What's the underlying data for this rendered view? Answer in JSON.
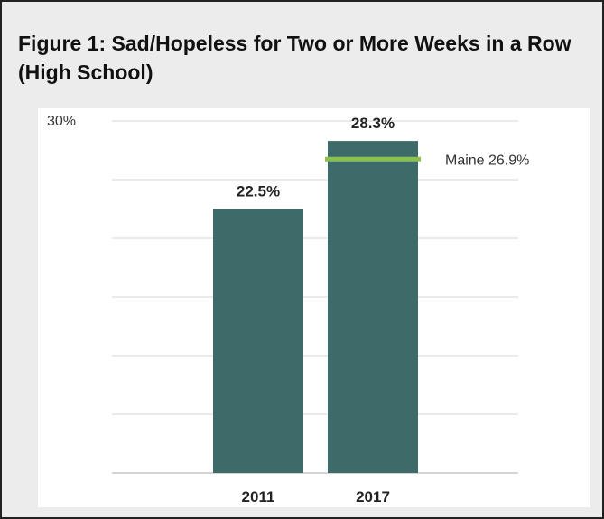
{
  "figure": {
    "title": "Figure 1: Sad/Hopeless for Two or More Weeks in a Row (High School)"
  },
  "chart_data": {
    "type": "bar",
    "title": "Figure 1: Sad/Hopeless for Two or More Weeks in a Row (High School)",
    "categories": [
      "2011",
      "2017"
    ],
    "values": [
      22.5,
      28.3
    ],
    "value_labels": [
      "22.5%",
      "28.3%"
    ],
    "ylim": [
      0,
      30
    ],
    "ytick_labels": [
      {
        "value": 30,
        "label": "30%"
      }
    ],
    "gridlines": [
      0,
      5,
      10,
      15,
      20,
      25,
      30
    ],
    "grid": true,
    "bar_color": "#3d6b69",
    "reference_line": {
      "label": "Maine 26.9%",
      "value": 26.9,
      "category": "2017",
      "color": "#8cc152"
    }
  }
}
